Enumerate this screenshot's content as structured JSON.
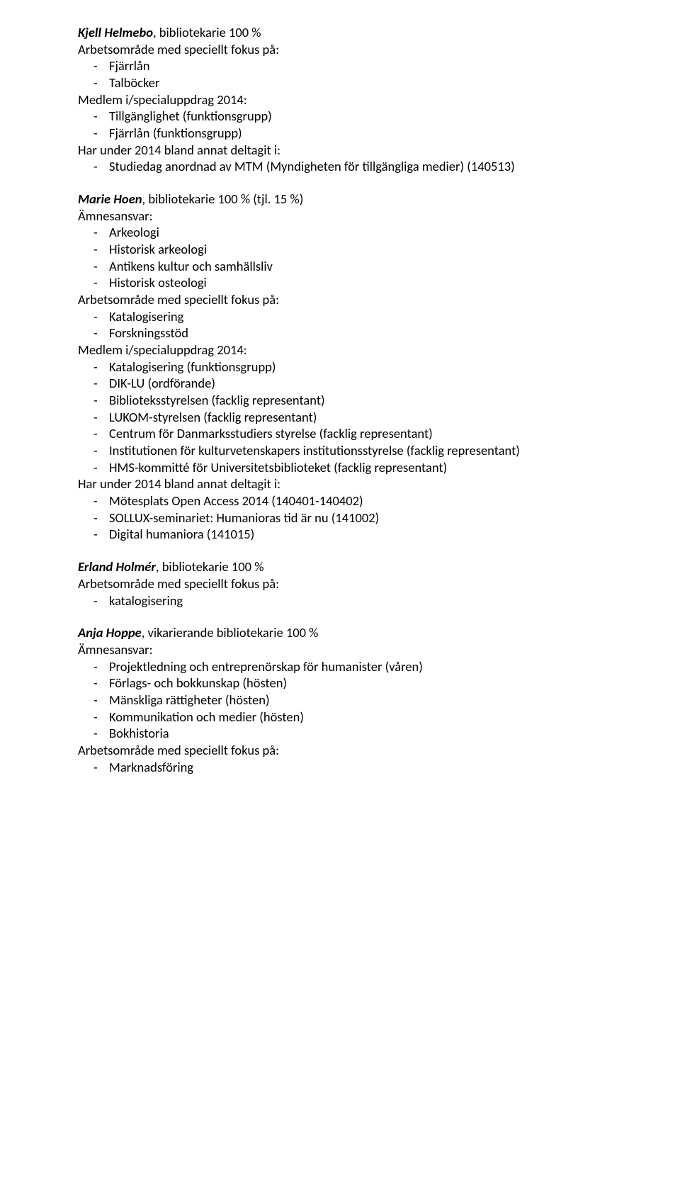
{
  "labels": {
    "amnesansvar": "Ämnesansvar:",
    "arbetsomrade": "Arbetsområde med speciellt fokus på:",
    "medlem": "Medlem i/specialuppdrag 2014:",
    "har_under": "Har under 2014 bland annat deltagit i:"
  },
  "people": [
    {
      "name": "Kjell Helmebo",
      "role": ", bibliotekarie 100 %",
      "arbetsomrade": [
        "Fjärrlån",
        "Talböcker"
      ],
      "medlem": [
        "Tillgänglighet (funktionsgrupp)",
        "Fjärrlån (funktionsgrupp)"
      ],
      "har_under": [
        "Studiedag anordnad av MTM (Myndigheten för tillgängliga medier) (140513)"
      ]
    },
    {
      "name": "Marie Hoen",
      "role": ", bibliotekarie 100 % (tjl. 15 %)",
      "amnesansvar": [
        "Arkeologi",
        "Historisk arkeologi",
        "Antikens kultur och samhällsliv",
        "Historisk osteologi"
      ],
      "arbetsomrade": [
        "Katalogisering",
        "Forskningsstöd"
      ],
      "medlem": [
        "Katalogisering (funktionsgrupp)",
        "DIK-LU (ordförande)",
        "Biblioteksstyrelsen (facklig representant)",
        "LUKOM-styrelsen (facklig representant)",
        "Centrum för Danmarksstudiers styrelse (facklig representant)",
        "Institutionen för kulturvetenskapers institutionsstyrelse (facklig representant)",
        "HMS-kommitté för Universitetsbiblioteket (facklig representant)"
      ],
      "har_under": [
        "Mötesplats Open Access 2014 (140401-140402)",
        "SOLLUX-seminariet: Humanioras tid är nu (141002)",
        "Digital humaniora (141015)"
      ]
    },
    {
      "name": "Erland Holmér",
      "role": ", bibliotekarie 100 %",
      "arbetsomrade": [
        "katalogisering"
      ]
    },
    {
      "name": "Anja Hoppe",
      "role": ", vikarierande bibliotekarie 100 %",
      "amnesansvar": [
        "Projektledning och entreprenörskap för humanister (våren)",
        "Förlags- och bokkunskap (hösten)",
        "Mänskliga rättigheter (hösten)",
        "Kommunikation och medier (hösten)",
        "Bokhistoria"
      ],
      "arbetsomrade": [
        "Marknadsföring"
      ]
    }
  ]
}
